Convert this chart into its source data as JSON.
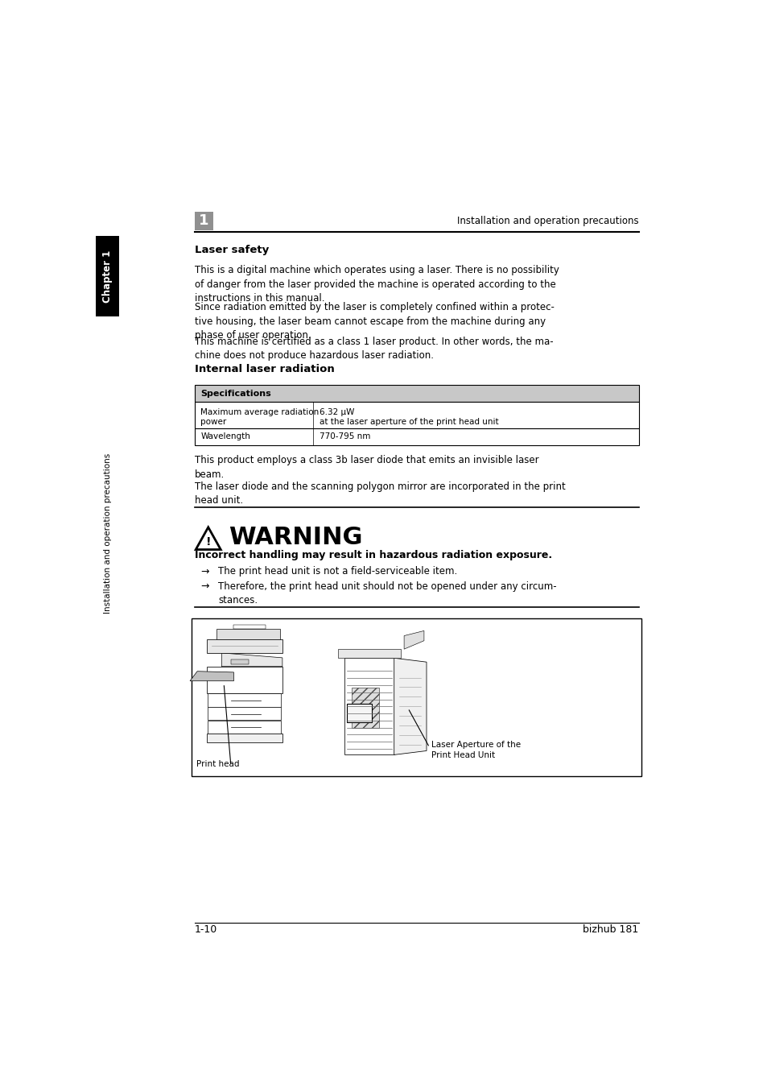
{
  "bg_color": "#ffffff",
  "page_width": 9.54,
  "page_height": 13.5,
  "header_text": "Installation and operation precautions",
  "header_chapter_num": "1",
  "chapter_tab_text": "Chapter 1",
  "side_tab_text": "Installation and operation precautions",
  "section1_title": "Laser safety",
  "para1": "This is a digital machine which operates using a laser. There is no possibility\nof danger from the laser provided the machine is operated according to the\ninstructions in this manual.",
  "para2": "Since radiation emitted by the laser is completely confined within a protec-\ntive housing, the laser beam cannot escape from the machine during any\nphase of user operation.",
  "para3": "This machine is certified as a class 1 laser product. In other words, the ma-\nchine does not produce hazardous laser radiation.",
  "section2_title": "Internal laser radiation",
  "table_header": "Specifications",
  "table_row1_col1_line1": "Maximum average radiation",
  "table_row1_col1_line2": "power",
  "table_row1_col2_line1": "6.32 μW",
  "table_row1_col2_line2": "at the laser aperture of the print head unit",
  "table_row2_col1": "Wavelength",
  "table_row2_col2": "770-795 nm",
  "para4": "This product employs a class 3b laser diode that emits an invisible laser\nbeam.",
  "para5": "The laser diode and the scanning polygon mirror are incorporated in the print\nhead unit.",
  "warning_title": "WARNING",
  "warning_bold": "Incorrect handling may result in hazardous radiation exposure.",
  "bullet1": "The print head unit is not a field-serviceable item.",
  "bullet2": "Therefore, the print head unit should not be opened under any circum-\nstances.",
  "footer_left": "1-10",
  "footer_right": "bizhub 181",
  "print_head_label": "Print head",
  "laser_aperture_label": "Laser Aperture of the\nPrint Head Unit",
  "tab_bg": "#000000",
  "tab_text_color": "#ffffff",
  "table_header_bg": "#c8c8c8",
  "table_border_color": "#000000",
  "chapter_box_bg": "#909090"
}
